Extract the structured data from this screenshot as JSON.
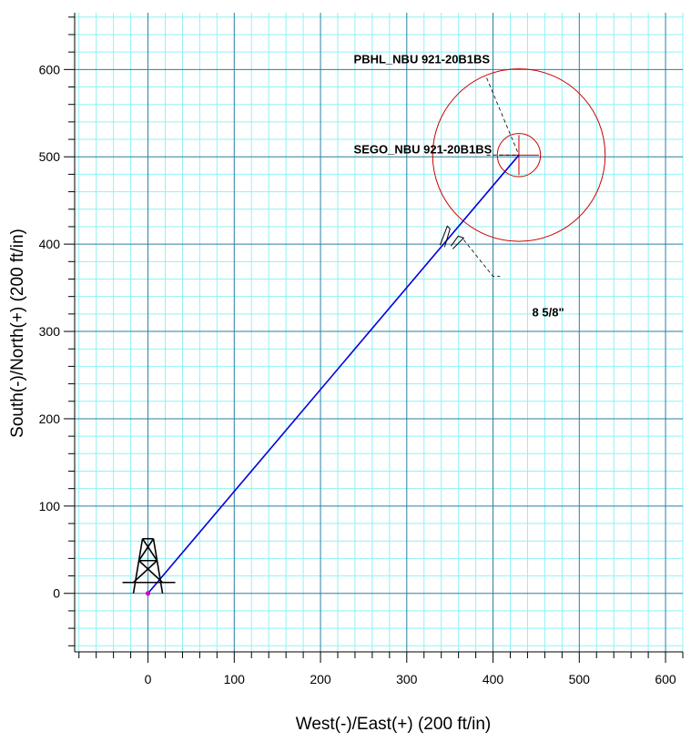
{
  "chart_data": {
    "type": "line",
    "xlabel": "West(-)/East(+) (200 ft/in)",
    "ylabel": "South(-)/North(+) (200 ft/in)",
    "xlim": [
      -85,
      620
    ],
    "ylim": [
      -67,
      665
    ],
    "x_ticks": [
      0,
      100,
      200,
      300,
      400,
      500,
      600
    ],
    "y_ticks": [
      0,
      100,
      200,
      300,
      400,
      500,
      600
    ],
    "grid": true,
    "series": [
      {
        "x": [
          0,
          430
        ],
        "y": [
          0,
          502
        ],
        "color": "#0000dd"
      }
    ],
    "targets": [
      {
        "label": "PBHL_NBU 921-20B1BS",
        "x": 430,
        "y": 502,
        "radius": 100,
        "color": "#cc0000",
        "label_pos": [
          95,
          605
        ]
      },
      {
        "label": "SEGO_NBU 921-20B1BS",
        "x": 430,
        "y": 502,
        "radius": 25,
        "color": "#cc0000",
        "label_pos": [
          95,
          502
        ]
      }
    ],
    "casing": {
      "label": "8 5/8\"",
      "x": 347,
      "y": 405,
      "label_pos": [
        400,
        330
      ]
    },
    "rig_icon": {
      "x": 0,
      "y": 0
    },
    "colors": {
      "grid_minor": "#8ff2f5",
      "grid_major": "#2a7fa0",
      "trajectory": "#0000dd",
      "target": "#cc0000",
      "surface": "#cc00cc"
    }
  }
}
